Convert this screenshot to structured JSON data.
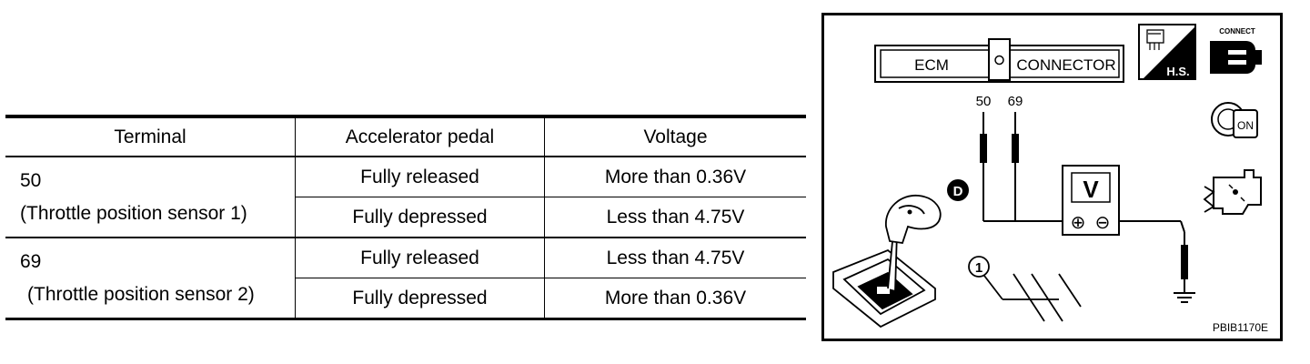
{
  "table": {
    "headers": [
      "Terminal",
      "Accelerator pedal",
      "Voltage"
    ],
    "groups": [
      {
        "terminal_number": "50",
        "terminal_name": "(Throttle position sensor 1)",
        "rows": [
          {
            "pedal": "Fully released",
            "voltage": "More than 0.36V"
          },
          {
            "pedal": "Fully depressed",
            "voltage": "Less than 4.75V"
          }
        ]
      },
      {
        "terminal_number": "69",
        "terminal_name": "(Throttle position sensor 2)",
        "rows": [
          {
            "pedal": "Fully released",
            "voltage": "Less than 4.75V"
          },
          {
            "pedal": "Fully depressed",
            "voltage": "More than 0.36V"
          }
        ]
      }
    ]
  },
  "diagram": {
    "connector_left_label": "ECM",
    "connector_right_label": "CONNECTOR",
    "harness_side_label": "H.S.",
    "connect_label": "CONNECT",
    "ignition_label": "ON",
    "terminal_labels": [
      "50",
      "69"
    ],
    "voltmeter_label": "V",
    "plus_symbol": "⊕",
    "minus_symbol": "⊖",
    "shift_position_label": "D",
    "parking_brake_callout": "1",
    "figure_code": "PBIB1170E"
  }
}
